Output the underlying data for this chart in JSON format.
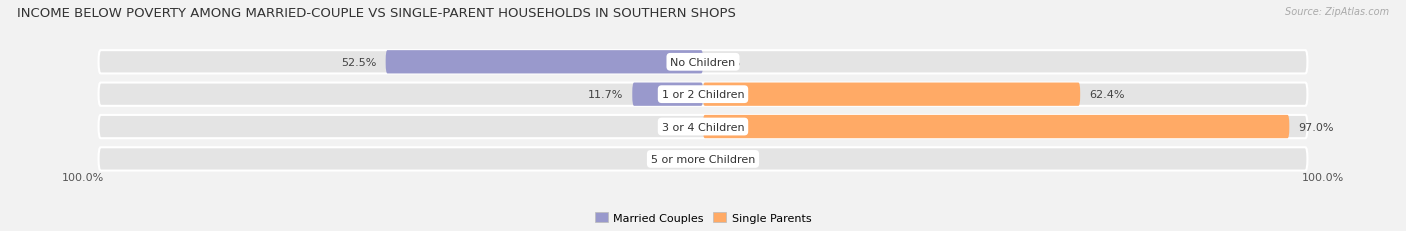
{
  "title": "INCOME BELOW POVERTY AMONG MARRIED-COUPLE VS SINGLE-PARENT HOUSEHOLDS IN SOUTHERN SHOPS",
  "source": "Source: ZipAtlas.com",
  "categories": [
    "No Children",
    "1 or 2 Children",
    "3 or 4 Children",
    "5 or more Children"
  ],
  "married_values": [
    52.5,
    11.7,
    0.0,
    0.0
  ],
  "single_values": [
    0.0,
    62.4,
    97.0,
    0.0
  ],
  "married_color": "#9999cc",
  "single_color": "#ffaa66",
  "bg_color": "#f2f2f2",
  "row_bg_color": "#e4e4e4",
  "legend_married": "Married Couples",
  "legend_single": "Single Parents",
  "axis_label_left": "100.0%",
  "axis_label_right": "100.0%",
  "title_fontsize": 9.5,
  "label_fontsize": 8,
  "category_fontsize": 8,
  "source_fontsize": 7
}
